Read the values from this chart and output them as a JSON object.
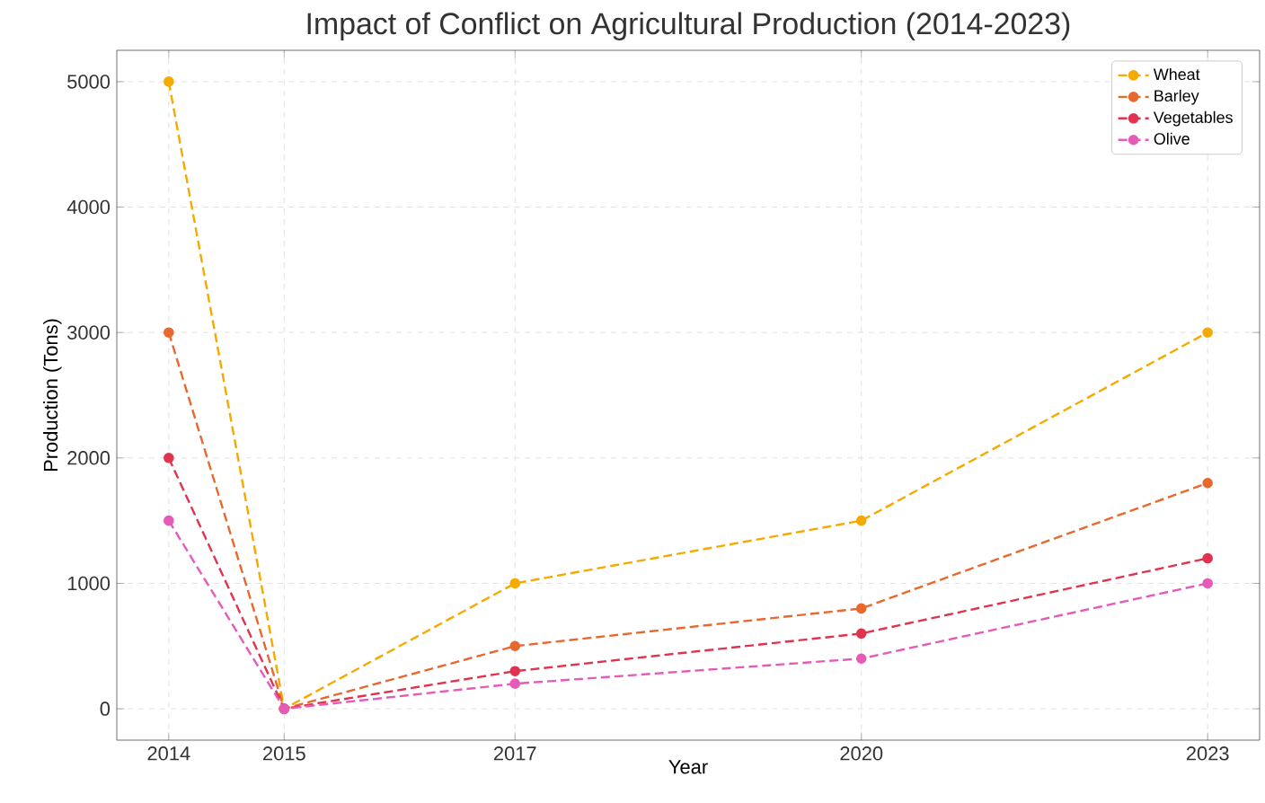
{
  "chart_data": {
    "type": "line",
    "title": "Impact of Conflict on Agricultural Production (2014-2023)",
    "xlabel": "Year",
    "ylabel": "Production (Tons)",
    "x": [
      2014,
      2015,
      2017,
      2020,
      2023
    ],
    "series": [
      {
        "name": "Wheat",
        "color": "#f5aa00",
        "values": [
          5000,
          0,
          1000,
          1500,
          3000
        ]
      },
      {
        "name": "Barley",
        "color": "#e8682e",
        "values": [
          3000,
          0,
          500,
          800,
          1800
        ]
      },
      {
        "name": "Vegetables",
        "color": "#e0334f",
        "values": [
          2000,
          0,
          300,
          600,
          1200
        ]
      },
      {
        "name": "Olive",
        "color": "#e65bb8",
        "values": [
          1500,
          0,
          200,
          400,
          1000
        ]
      }
    ],
    "xlim": [
      2013.55,
      2023.45
    ],
    "ylim": [
      -250,
      5250
    ],
    "xticks": [
      2014,
      2015,
      2017,
      2020,
      2023
    ],
    "yticks": [
      0,
      1000,
      2000,
      3000,
      4000,
      5000
    ],
    "grid": true,
    "legend": "top right",
    "marker": "circle",
    "line_style": "dashed"
  }
}
